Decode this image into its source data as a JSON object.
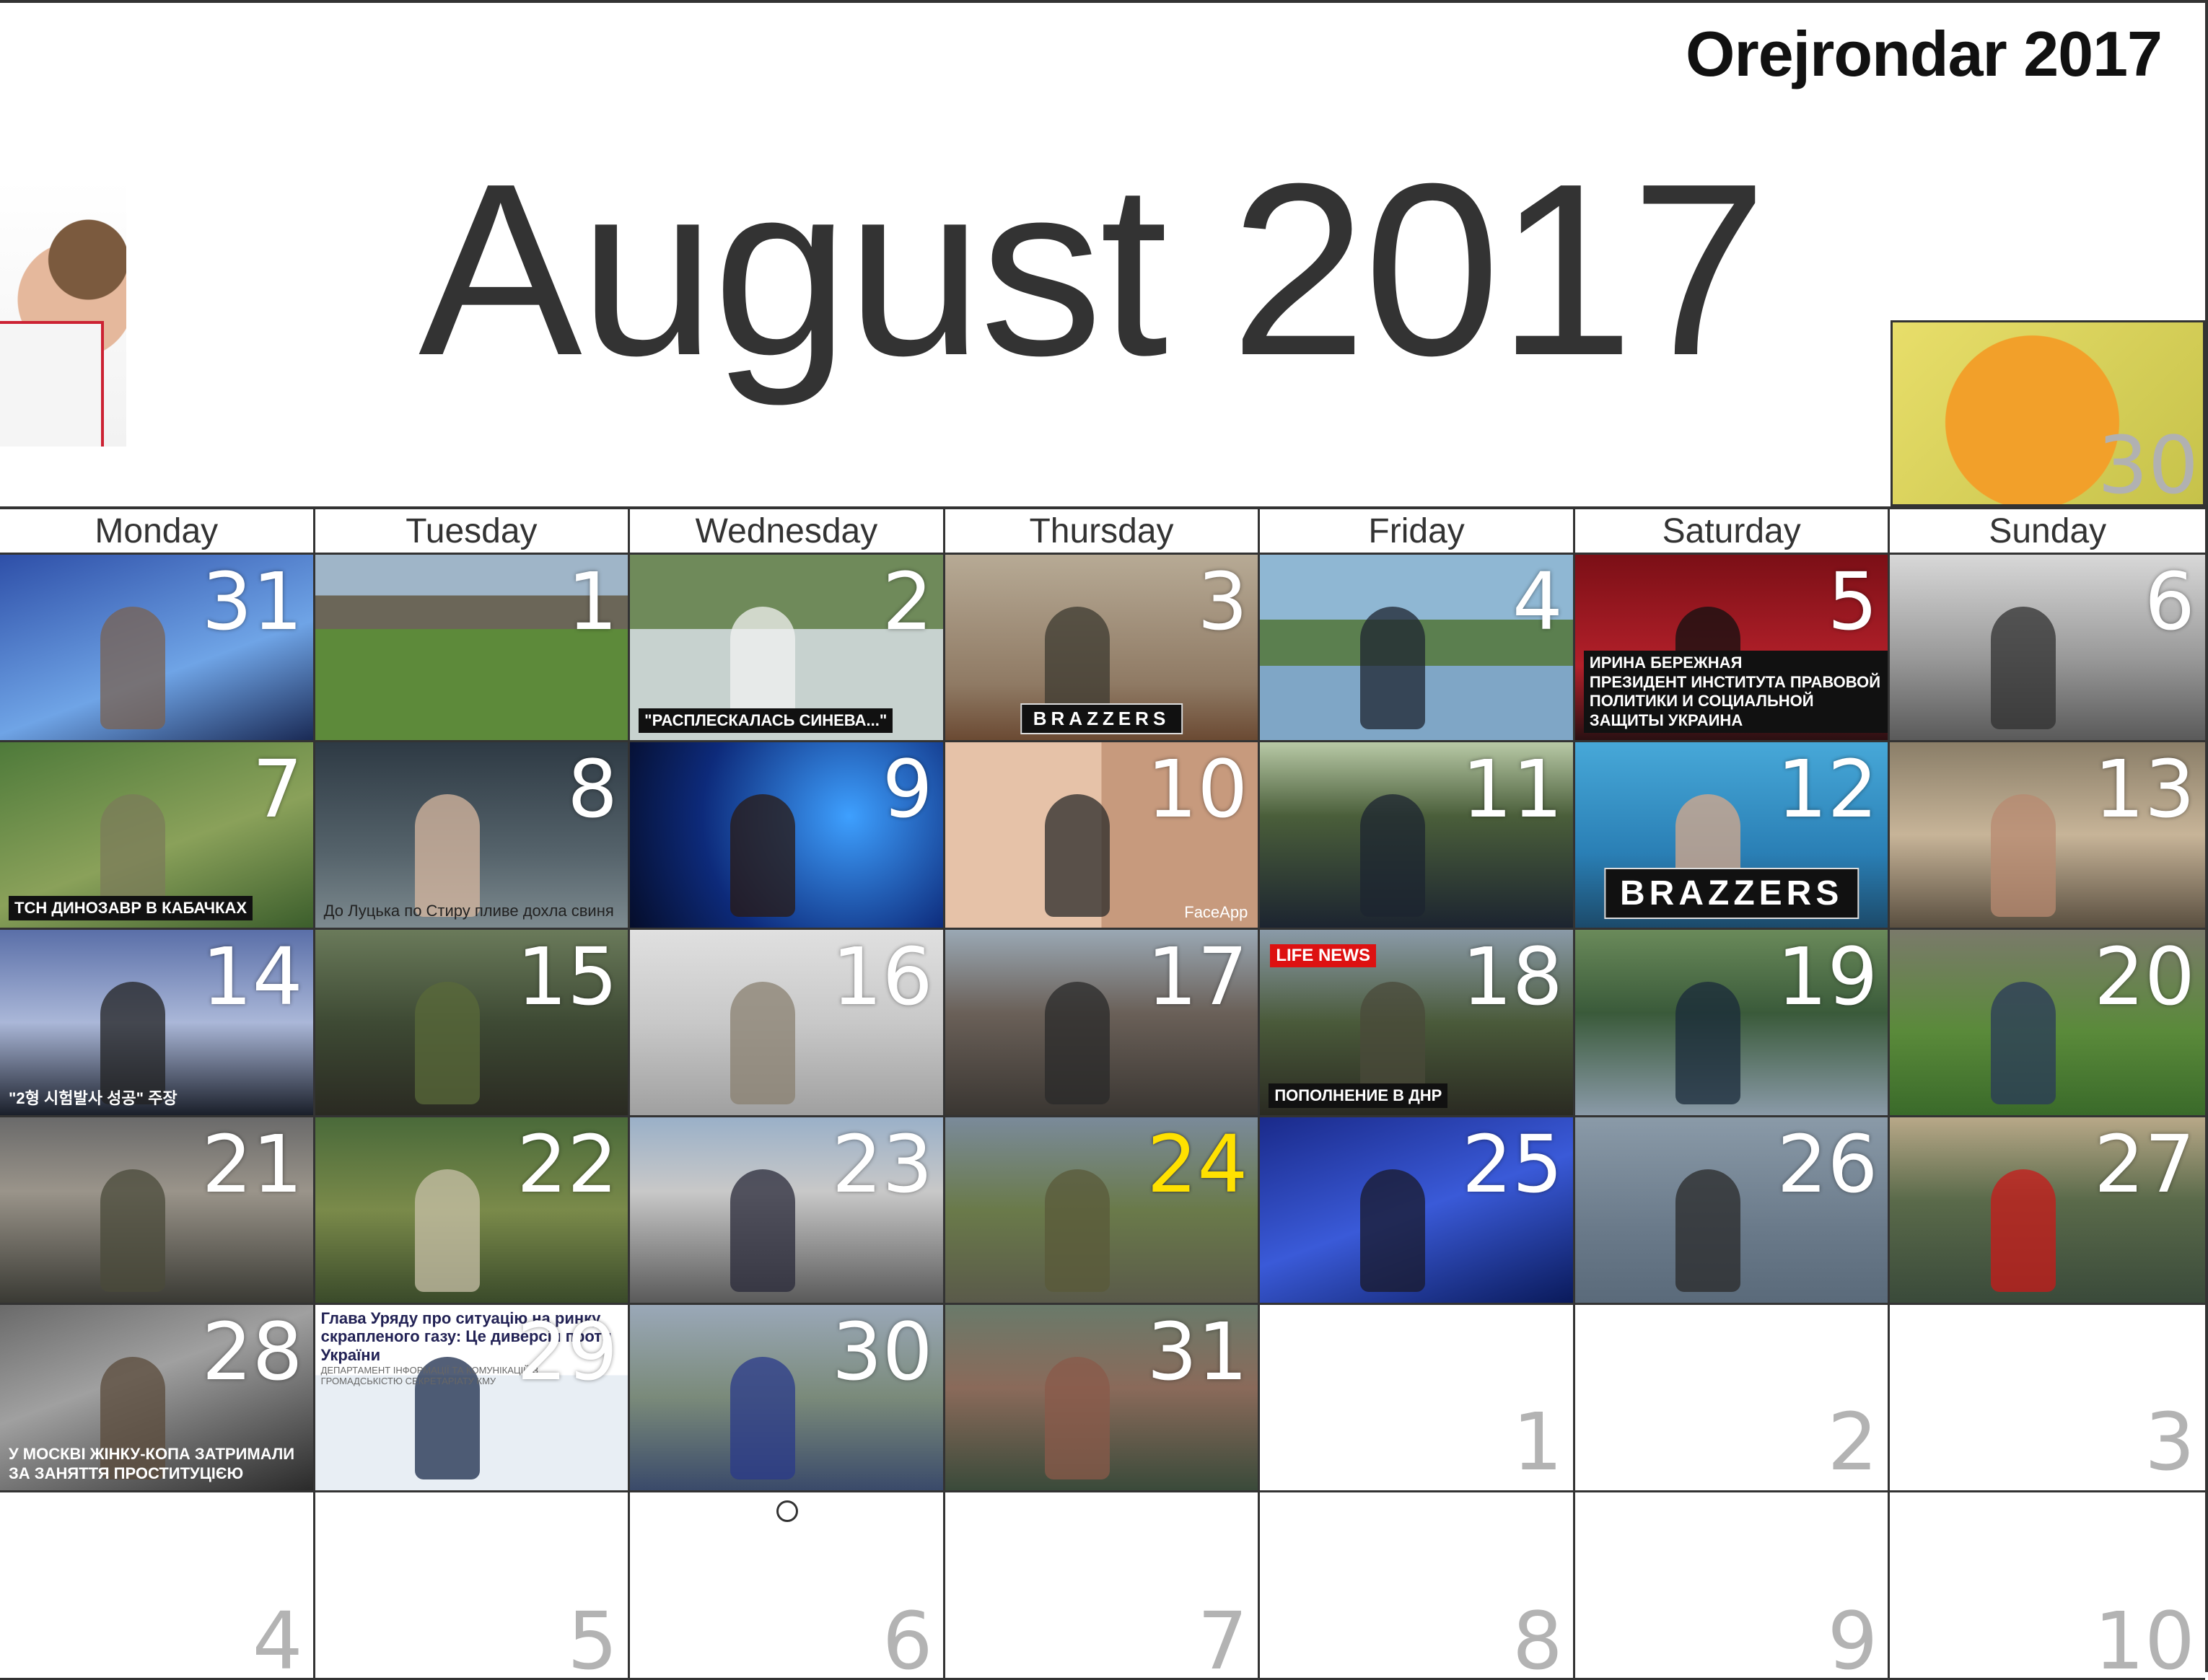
{
  "brand": "Orejrondar 2017",
  "title": "August 2017",
  "prev_month_day": "30",
  "weekdays": [
    "Monday",
    "Tuesday",
    "Wednesday",
    "Thursday",
    "Friday",
    "Saturday",
    "Sunday"
  ],
  "weeks": [
    [
      {
        "day": "31",
        "bg": "linear-gradient(160deg,#2e4fa8,#6fa4e6 60%,#1a2a55)",
        "figure": "#7a6150"
      },
      {
        "day": "1",
        "bg": "linear-gradient(180deg,#9fb5c8 0 22%,#6b6658 22% 40%,#5d8a3a 40% 100%)",
        "figure": ""
      },
      {
        "day": "2",
        "bg": "linear-gradient(180deg,#6f8a5a 0 40%,#c7d2cf 40%)",
        "figure": "#f2f2f2",
        "caption": "\"РАСПЛЕСКАЛАСЬ СИНЕВА...\"",
        "caption_style": "box"
      },
      {
        "day": "3",
        "bg": "linear-gradient(180deg,#b7aa95,#8f7a64 70%,#6b4a33)",
        "figure": "#3c3a30",
        "logo": "BRAZZERS"
      },
      {
        "day": "4",
        "bg": "linear-gradient(180deg,#8fb7d3 0 35%,#5b7f4f 35% 60%,#7fa6c6 60%)",
        "figure": "#1d2430"
      },
      {
        "day": "5",
        "bg": "linear-gradient(180deg,#7b0f16,#b3202a 60%,#2a1012)",
        "figure": "#101010",
        "caption": "ИРИНА БЕРЕЖНАЯ\nПРЕЗИДЕНТ ИНСТИТУТА ПРАВОВОЙ ПОЛИТИКИ И СОЦИАЛЬНОЙ ЗАЩИТЫ УКРАИНА",
        "caption_style": "box"
      },
      {
        "day": "6",
        "bg": "linear-gradient(180deg,#d8d8d8,#9a9a9a 55%,#5a5a5a)",
        "figure": "#303030"
      }
    ],
    [
      {
        "day": "7",
        "bg": "linear-gradient(160deg,#4e7a3a,#8aa15a 55%,#3c5e2c)",
        "figure": "#7b7b5a",
        "caption": "ТСН ДИНОЗАВР В КАБАЧКАХ",
        "caption_style": "box"
      },
      {
        "day": "8",
        "bg": "linear-gradient(180deg,#2e3a44,#55636b 60%,#7d8a8f)",
        "figure": "#d8b8a0",
        "caption": "До Луцька по Стиру пливе дохла свиня",
        "caption_style": "dark"
      },
      {
        "day": "9",
        "bg": "radial-gradient(circle at 70% 40%,#3ea0ff,#0d2a7a 60%,#050d2a)",
        "figure": "#2a1a12"
      },
      {
        "day": "10",
        "bg": "linear-gradient(90deg,#e6c2a8 50%,#c79a7d 50%)",
        "figure": "#2a2a2a",
        "watermark": "FaceApp"
      },
      {
        "day": "11",
        "bg": "linear-gradient(180deg,#b8c9a6,#4a5e3a 40%,#1c2430)",
        "figure": "#1c2430"
      },
      {
        "day": "12",
        "bg": "linear-gradient(180deg,#47a8d8,#2a7fb5 60%,#1c4a6a)",
        "figure": "#d8a88a",
        "logo": "BRAZZERS",
        "logo_size": "big"
      },
      {
        "day": "13",
        "bg": "linear-gradient(180deg,#8a7e68,#c7b498 50%,#5a4f40)",
        "figure": "#b88a70"
      }
    ],
    [
      {
        "day": "14",
        "bg": "linear-gradient(180deg,#5a6fa8,#aab7d8 50%,#1a1f2a)",
        "figure": "#222",
        "caption": "\"2형 시험발사 성공\" 주장",
        "caption_style": "plain"
      },
      {
        "day": "15",
        "bg": "linear-gradient(180deg,#6a7a5a,#3e4a34 50%,#2a2a22)",
        "figure": "#5a6a3a"
      },
      {
        "day": "16",
        "bg": "linear-gradient(180deg,#e0e0e0,#c8c8c8 50%,#a0a0a0)",
        "figure": "#8a8070"
      },
      {
        "day": "17",
        "bg": "linear-gradient(180deg,#9aa8b4,#6a6058 45%,#3a3632)",
        "figure": "#2a2a2a"
      },
      {
        "day": "18",
        "bg": "linear-gradient(180deg,#8a9aa8,#4a5a3a 50%,#2a2a22)",
        "figure": "#4a4a3a",
        "badge": "LIFE NEWS",
        "caption": "ПОПОЛНЕНИЕ В ДНР",
        "caption_style": "box"
      },
      {
        "day": "19",
        "bg": "linear-gradient(180deg,#6a8a5a,#3a5a3a 45%,#8a9aa8)",
        "figure": "#1a2a3a"
      },
      {
        "day": "20",
        "bg": "linear-gradient(180deg,#7a7a6a,#5a8a3a 55%,#3a6a2a)",
        "figure": "#2a3a5a"
      }
    ],
    [
      {
        "day": "21",
        "bg": "linear-gradient(180deg,#6a6a6a,#9a948a 40%,#3a3a34)",
        "figure": "#4a4a3a"
      },
      {
        "day": "22",
        "bg": "linear-gradient(180deg,#4a6a3a,#7a8a4a 50%,#3a4a2a)",
        "figure": "#c8c0a8"
      },
      {
        "day": "23",
        "bg": "linear-gradient(180deg,#9ab0c8,#c8c8c8 40%,#5a5a5a)",
        "figure": "#2a2a3a"
      },
      {
        "day": "24",
        "bg": "linear-gradient(180deg,#7a8a9a,#6a7a4a 50%,#5a5a4a)",
        "figure": "#5a5a3a",
        "day_style": "yellow"
      },
      {
        "day": "25",
        "bg": "linear-gradient(160deg,#1a2a8a,#3a5ad8 50%,#0a1a5a)",
        "figure": "#1a1a2a"
      },
      {
        "day": "26",
        "bg": "linear-gradient(180deg,#8a9aa8,#6a7a8a 60%,#5a6a7a)",
        "figure": "#2a2a2a"
      },
      {
        "day": "27",
        "bg": "linear-gradient(180deg,#b8a888,#5a6a4a 45%,#3a4a3a)",
        "figure": "#c81a1a"
      }
    ],
    [
      {
        "day": "28",
        "bg": "linear-gradient(160deg,#6a6a6a,#a0a0a0 40%,#2a2a2a)",
        "figure": "#5a4a3a",
        "caption": "У МОСКВІ ЖІНКУ-КОПА ЗАТРИМАЛИ ЗА ЗАНЯТТЯ ПРОСТИТУЦІЄЮ",
        "caption_style": "plain"
      },
      {
        "day": "29",
        "bg": "linear-gradient(180deg,#ffffff 0 38%,#e8eef4 38%)",
        "figure": "#1a2a4a",
        "headline": "Глава Уряду про ситуацію на ринку скрапленого газу: Це диверсія проти України",
        "subline": "ДЕПАРТАМЕНТ ІНФОРМАЦІЇ ТА КОМУНІКАЦІЙ З ГРОМАДСЬКІСТЮ СЕКРЕТАРІАТУ КМУ"
      },
      {
        "day": "30",
        "bg": "linear-gradient(180deg,#9aa8b8,#7a8a7a 50%,#3a4a6a)",
        "figure": "#2a3a8a"
      },
      {
        "day": "31",
        "bg": "linear-gradient(180deg,#6a7a6a,#8a6a5a 45%,#3a4a3a)",
        "figure": "#8a5a4a"
      },
      {
        "day": "1",
        "empty": true
      },
      {
        "day": "2",
        "empty": true
      },
      {
        "day": "3",
        "empty": true
      }
    ],
    [
      {
        "day": "4",
        "empty": true
      },
      {
        "day": "5",
        "empty": true
      },
      {
        "day": "6",
        "empty": true
      },
      {
        "day": "7",
        "empty": true
      },
      {
        "day": "8",
        "empty": true
      },
      {
        "day": "9",
        "empty": true
      },
      {
        "day": "10",
        "empty": true
      }
    ]
  ]
}
